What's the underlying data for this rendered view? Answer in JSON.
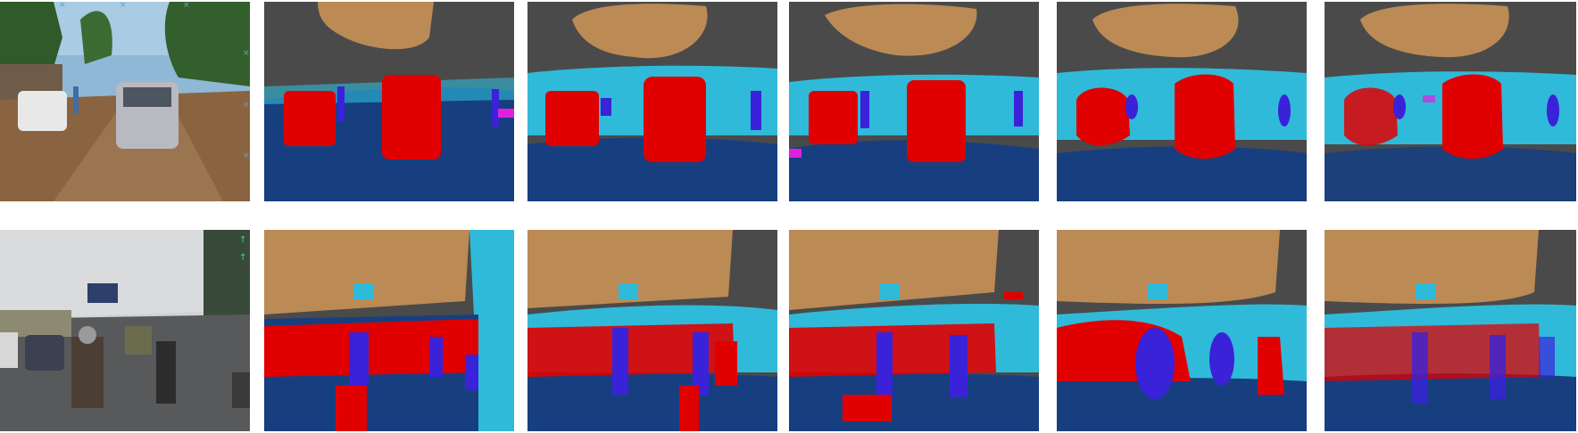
{
  "figure": {
    "layout": "2 rows x 6 panels",
    "rows": [
      {
        "scene": "dirt road with parked cars and trees",
        "panels": [
          "input-photo",
          "segmentation-1",
          "segmentation-2",
          "segmentation-3",
          "segmentation-4",
          "segmentation-5"
        ]
      },
      {
        "scene": "city street with motorcycles and billboards",
        "panels": [
          "input-photo",
          "segmentation-1",
          "segmentation-2",
          "segmentation-3",
          "segmentation-4",
          "segmentation-5"
        ]
      }
    ]
  },
  "palette": {
    "sky": "#bb8a55",
    "building": "#4a4a4a",
    "vegetation": "#2fbad9",
    "road": "#173f80",
    "car": "#e00000",
    "person": "#3a22d8",
    "other": "#e020e0"
  }
}
